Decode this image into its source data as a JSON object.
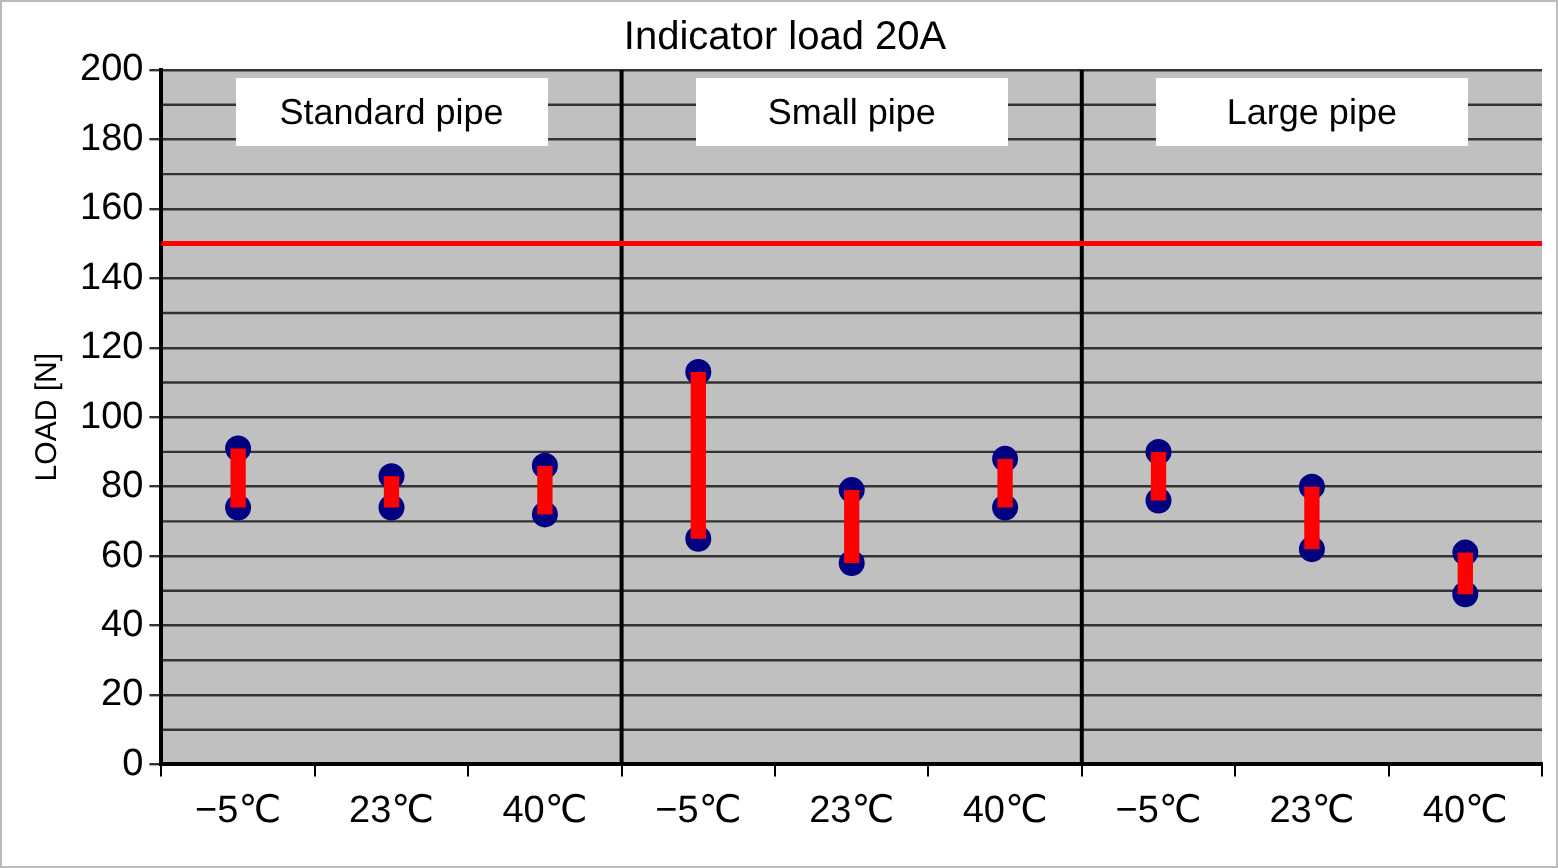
{
  "chart_data": {
    "type": "bar",
    "title": "Indicator load 20A",
    "ylabel": "LOAD [N]",
    "categories": [
      "−5℃",
      "23℃",
      "40℃",
      "−5℃",
      "23℃",
      "40℃",
      "−5℃",
      "23℃",
      "40℃"
    ],
    "series": [
      {
        "color": "#ff0000",
        "base": [
          74,
          74,
          72,
          65,
          58,
          74,
          76,
          62,
          49
        ],
        "values": [
          17,
          9,
          14,
          48,
          21,
          14,
          14,
          18,
          12
        ]
      },
      {
        "type": "scatter",
        "color": "#000080",
        "values": [
          91,
          83,
          86,
          113,
          79,
          88,
          90,
          80,
          61
        ]
      },
      {
        "type": "scatter",
        "color": "#000080",
        "values": [
          74,
          74,
          72,
          65,
          58,
          74,
          76,
          62,
          49
        ]
      }
    ],
    "ylim": [
      0,
      200
    ],
    "yticks": [
      0,
      20,
      40,
      60,
      80,
      100,
      120,
      140,
      160,
      180,
      200
    ],
    "grid": "y",
    "legend": false,
    "marker": "circle",
    "ref_lines": [
      {
        "axis": "y",
        "value": 150,
        "color": "#ff0000"
      }
    ],
    "annotations": [
      "Standard pipe",
      "Small pipe",
      "Large pipe"
    ]
  }
}
